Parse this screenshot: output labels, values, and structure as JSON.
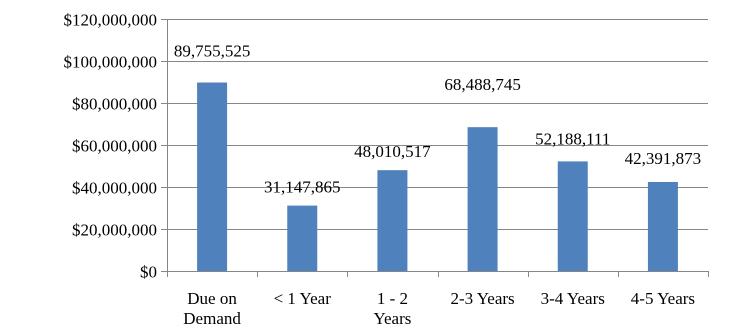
{
  "chart_data": {
    "type": "bar",
    "categories": [
      [
        "Due on",
        "Demand"
      ],
      [
        "< 1 Year"
      ],
      [
        "1 - 2",
        "Years"
      ],
      [
        "2-3 Years"
      ],
      [
        "3-4 Years"
      ],
      [
        "4-5 Years"
      ]
    ],
    "values": [
      89755525,
      31147865,
      48010517,
      68488745,
      52188111,
      42391873
    ],
    "data_labels": [
      "89,755,525",
      "31,147,865",
      "48,010,517",
      "68,488,745",
      "52,188,111",
      "42,391,873"
    ],
    "y_ticks": [
      0,
      20000000,
      40000000,
      60000000,
      80000000,
      100000000,
      120000000
    ],
    "y_tick_labels": [
      "$0",
      "$20,000,000",
      "$40,000,000",
      "$60,000,000",
      "$80,000,000",
      "$100,000,000",
      "$120,000,000"
    ],
    "ylim": [
      0,
      120000000
    ],
    "title": "",
    "xlabel": "",
    "ylabel": "",
    "grid": true,
    "legend": "none",
    "colors": {
      "bar": "#4f81bd",
      "grid": "#868686",
      "axis": "#868686"
    }
  }
}
